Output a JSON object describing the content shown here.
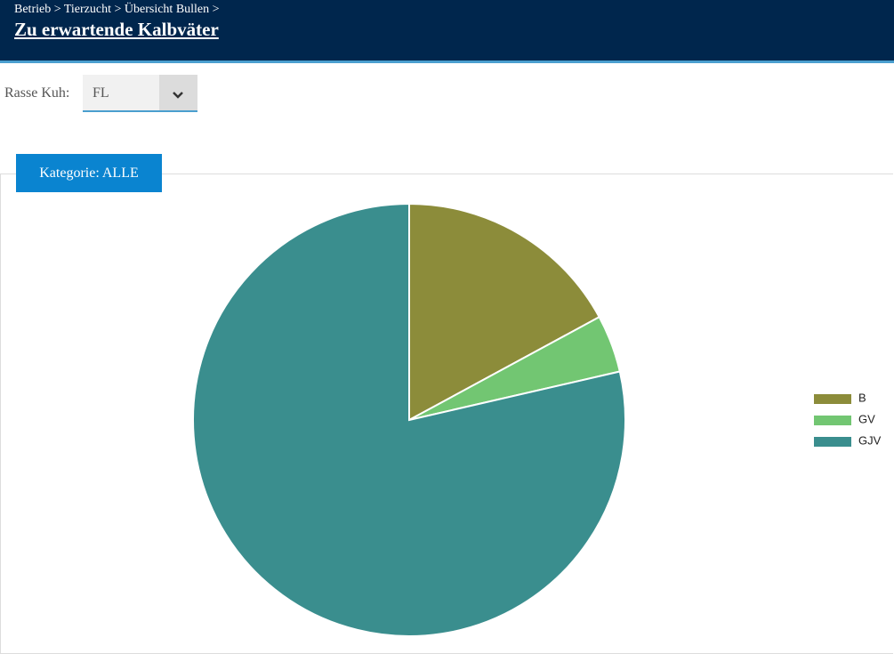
{
  "header": {
    "breadcrumb": "Betrieb > Tierzucht > Übersicht Bullen >",
    "title": "Zu erwartende Kalbväter"
  },
  "filter": {
    "label": "Rasse Kuh:",
    "value": "FL"
  },
  "button": "Kategorie: ALLE",
  "chart_data": {
    "type": "pie",
    "categories": [
      "B",
      "GV",
      "GJV"
    ],
    "values": [
      17.1,
      4.3,
      78.6
    ],
    "colors": [
      "#8c8c3a",
      "#72c672",
      "#3a8e8e"
    ],
    "legend": "right"
  }
}
